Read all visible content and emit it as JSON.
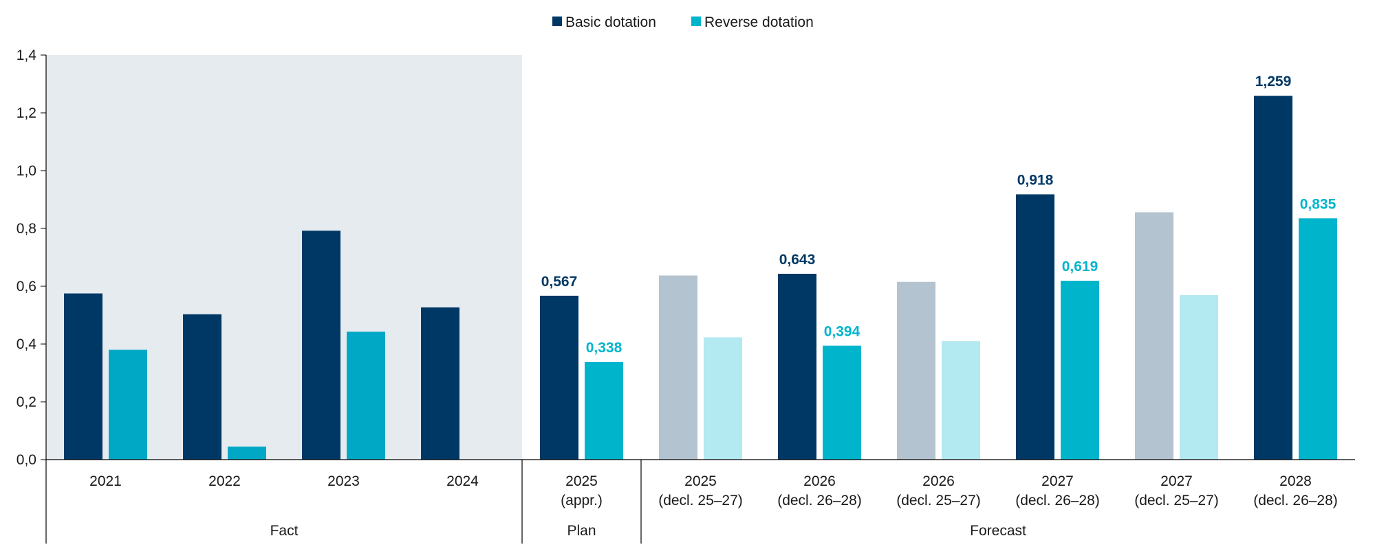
{
  "chart_data": {
    "type": "bar",
    "ylim": [
      0,
      1.4
    ],
    "yticks": [
      "0,0",
      "0,2",
      "0,4",
      "0,6",
      "0,8",
      "1,0",
      "1,2",
      "1,4"
    ],
    "legend_position": "top-center",
    "colors": {
      "basic": "#003865",
      "reverse": "#00B4CC",
      "basic_fact_reverse": "#00A8C6",
      "basic_faded": "#B3C3CF",
      "reverse_faded": "#B3E9F0",
      "fact_background": "#E6EBF0",
      "axis": "#000000"
    },
    "categories": [
      {
        "line1": "2021",
        "line2": ""
      },
      {
        "line1": "2022",
        "line2": ""
      },
      {
        "line1": "2023",
        "line2": ""
      },
      {
        "line1": "2024",
        "line2": ""
      },
      {
        "line1": "2025",
        "line2": "(appr.)"
      },
      {
        "line1": "2025",
        "line2": "(decl. 25–27)"
      },
      {
        "line1": "2026",
        "line2": "(decl. 26–28)"
      },
      {
        "line1": "2026",
        "line2": "(decl. 25–27)"
      },
      {
        "line1": "2027",
        "line2": "(decl. 26–28)"
      },
      {
        "line1": "2027",
        "line2": "(decl. 25–27)"
      },
      {
        "line1": "2028",
        "line2": "(decl. 26–28)"
      }
    ],
    "series": [
      {
        "name": "Basic dotation",
        "values": [
          0.575,
          0.503,
          0.792,
          0.527,
          0.567,
          0.637,
          0.643,
          0.615,
          0.918,
          0.856,
          1.259
        ],
        "labels": [
          "",
          "",
          "",
          "",
          "0,567",
          "",
          "0,643",
          "",
          "0,918",
          "",
          "1,259"
        ],
        "faded": [
          false,
          false,
          false,
          false,
          false,
          true,
          false,
          true,
          false,
          true,
          false
        ]
      },
      {
        "name": "Reverse dotation",
        "values": [
          0.38,
          0.045,
          0.443,
          null,
          0.338,
          0.423,
          0.394,
          0.41,
          0.619,
          0.569,
          0.835
        ],
        "labels": [
          "",
          "",
          "",
          "",
          "0,338",
          "",
          "0,394",
          "",
          "0,619",
          "",
          "0,835"
        ],
        "faded": [
          false,
          false,
          false,
          false,
          false,
          true,
          false,
          true,
          false,
          true,
          false
        ]
      }
    ],
    "groups": [
      {
        "label": "Fact",
        "start": 0,
        "end": 3
      },
      {
        "label": "Plan",
        "start": 4,
        "end": 4
      },
      {
        "label": "Forecast",
        "start": 5,
        "end": 10
      }
    ]
  }
}
